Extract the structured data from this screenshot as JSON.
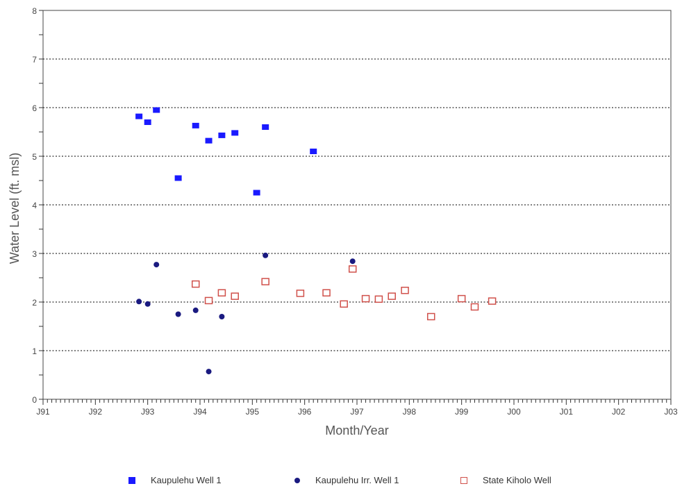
{
  "chart_data": {
    "type": "scatter",
    "title": "",
    "xlabel": "Month/Year",
    "ylabel": "Water Level (ft. msl)",
    "xlim": [
      "1991-01",
      "2003-01"
    ],
    "ylim": [
      0,
      8
    ],
    "x_tick_labels": [
      "J91",
      "J92",
      "J93",
      "J94",
      "J95",
      "J96",
      "J97",
      "J98",
      "J99",
      "J00",
      "J01",
      "J02",
      "J03"
    ],
    "y_tick_labels": [
      "0",
      "1",
      "2",
      "3",
      "4",
      "5",
      "6",
      "7",
      "8"
    ],
    "grid": "horizontal dotted",
    "legend_position": "bottom",
    "series": [
      {
        "name": "Kaupulehu Well 1",
        "marker": "filled-square",
        "color": "#1a1aff",
        "points": [
          {
            "x": "1992-11",
            "y": 5.82
          },
          {
            "x": "1993-01",
            "y": 5.7
          },
          {
            "x": "1993-03",
            "y": 5.95
          },
          {
            "x": "1993-08",
            "y": 4.55
          },
          {
            "x": "1993-12",
            "y": 5.63
          },
          {
            "x": "1994-03",
            "y": 5.32
          },
          {
            "x": "1994-06",
            "y": 5.43
          },
          {
            "x": "1994-09",
            "y": 5.48
          },
          {
            "x": "1995-02",
            "y": 4.25
          },
          {
            "x": "1995-04",
            "y": 5.6
          },
          {
            "x": "1996-03",
            "y": 5.1
          }
        ]
      },
      {
        "name": "Kaupulehu Irr. Well 1",
        "marker": "filled-circle",
        "color": "#1a1a80",
        "points": [
          {
            "x": "1992-11",
            "y": 2.01
          },
          {
            "x": "1993-01",
            "y": 1.96
          },
          {
            "x": "1993-03",
            "y": 2.77
          },
          {
            "x": "1993-08",
            "y": 1.75
          },
          {
            "x": "1993-12",
            "y": 1.83
          },
          {
            "x": "1994-03",
            "y": 0.57
          },
          {
            "x": "1994-06",
            "y": 1.7
          },
          {
            "x": "1995-04",
            "y": 2.96
          },
          {
            "x": "1996-12",
            "y": 2.84
          }
        ]
      },
      {
        "name": "State Kiholo Well",
        "marker": "open-square",
        "color": "#d0504a",
        "points": [
          {
            "x": "1993-12",
            "y": 2.37
          },
          {
            "x": "1994-03",
            "y": 2.03
          },
          {
            "x": "1994-06",
            "y": 2.19
          },
          {
            "x": "1994-09",
            "y": 2.12
          },
          {
            "x": "1995-04",
            "y": 2.42
          },
          {
            "x": "1995-12",
            "y": 2.18
          },
          {
            "x": "1996-06",
            "y": 2.19
          },
          {
            "x": "1996-10",
            "y": 1.96
          },
          {
            "x": "1996-12",
            "y": 2.68
          },
          {
            "x": "1997-03",
            "y": 2.07
          },
          {
            "x": "1997-06",
            "y": 2.06
          },
          {
            "x": "1997-09",
            "y": 2.12
          },
          {
            "x": "1997-12",
            "y": 2.24
          },
          {
            "x": "1998-06",
            "y": 1.7
          },
          {
            "x": "1999-01",
            "y": 2.07
          },
          {
            "x": "1999-04",
            "y": 1.9
          },
          {
            "x": "1999-08",
            "y": 2.02
          }
        ]
      }
    ]
  }
}
